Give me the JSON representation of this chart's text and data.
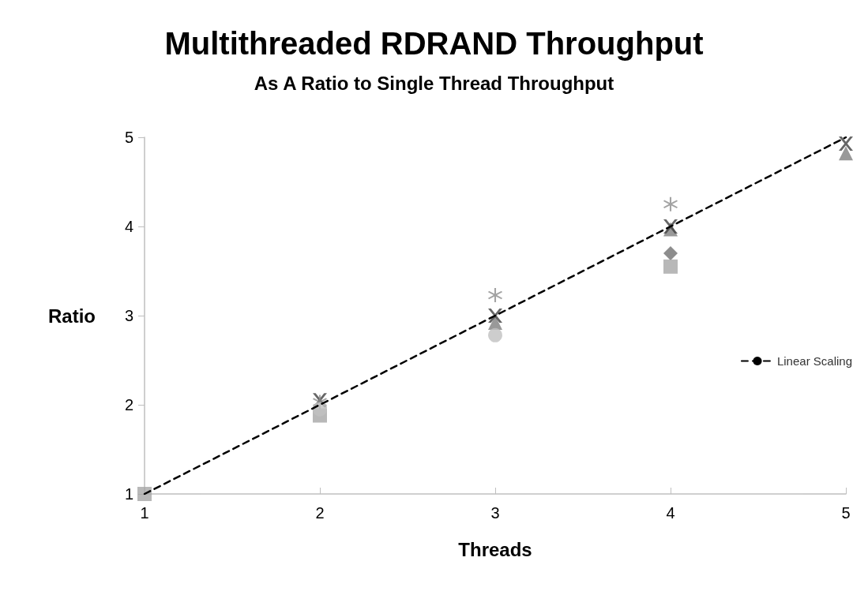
{
  "chart_data": {
    "type": "scatter",
    "title": "Multithreaded RDRAND Throughput",
    "subtitle": "As A Ratio to Single Thread Throughput",
    "xlabel": "Threads",
    "ylabel": "Ratio",
    "x": [
      1,
      2,
      3,
      4,
      5
    ],
    "xlim": [
      1,
      5
    ],
    "xticks": [
      1,
      2,
      3,
      4,
      5
    ],
    "ylim": [
      1,
      5
    ],
    "yticks": [
      1,
      2,
      3,
      4,
      5
    ],
    "grid": false,
    "legend": "right",
    "series": [
      {
        "marker": "diamond",
        "color": "#707070",
        "values": [
          null,
          null,
          null,
          3.7,
          null
        ]
      },
      {
        "marker": "square",
        "color": "#a6a6a6",
        "values": [
          1,
          1.88,
          null,
          3.55,
          null
        ]
      },
      {
        "marker": "triangle",
        "color": "#7f7f7f",
        "values": [
          null,
          null,
          2.92,
          3.97,
          4.82
        ]
      },
      {
        "marker": "cross",
        "color": "#404040",
        "values": [
          null,
          2.05,
          3.0,
          4.0,
          4.93
        ]
      },
      {
        "marker": "star",
        "color": "#8c8c8c",
        "values": [
          null,
          2.03,
          3.23,
          4.25,
          null
        ]
      },
      {
        "marker": "circle",
        "color": "#c0c0c0",
        "values": [
          null,
          1.95,
          2.78,
          null,
          null
        ]
      },
      {
        "name": "Linear Scaling",
        "type": "line",
        "marker": "none",
        "line_style": "dashed",
        "color": "#000000",
        "values": [
          1,
          2,
          3,
          4,
          5
        ]
      }
    ]
  }
}
